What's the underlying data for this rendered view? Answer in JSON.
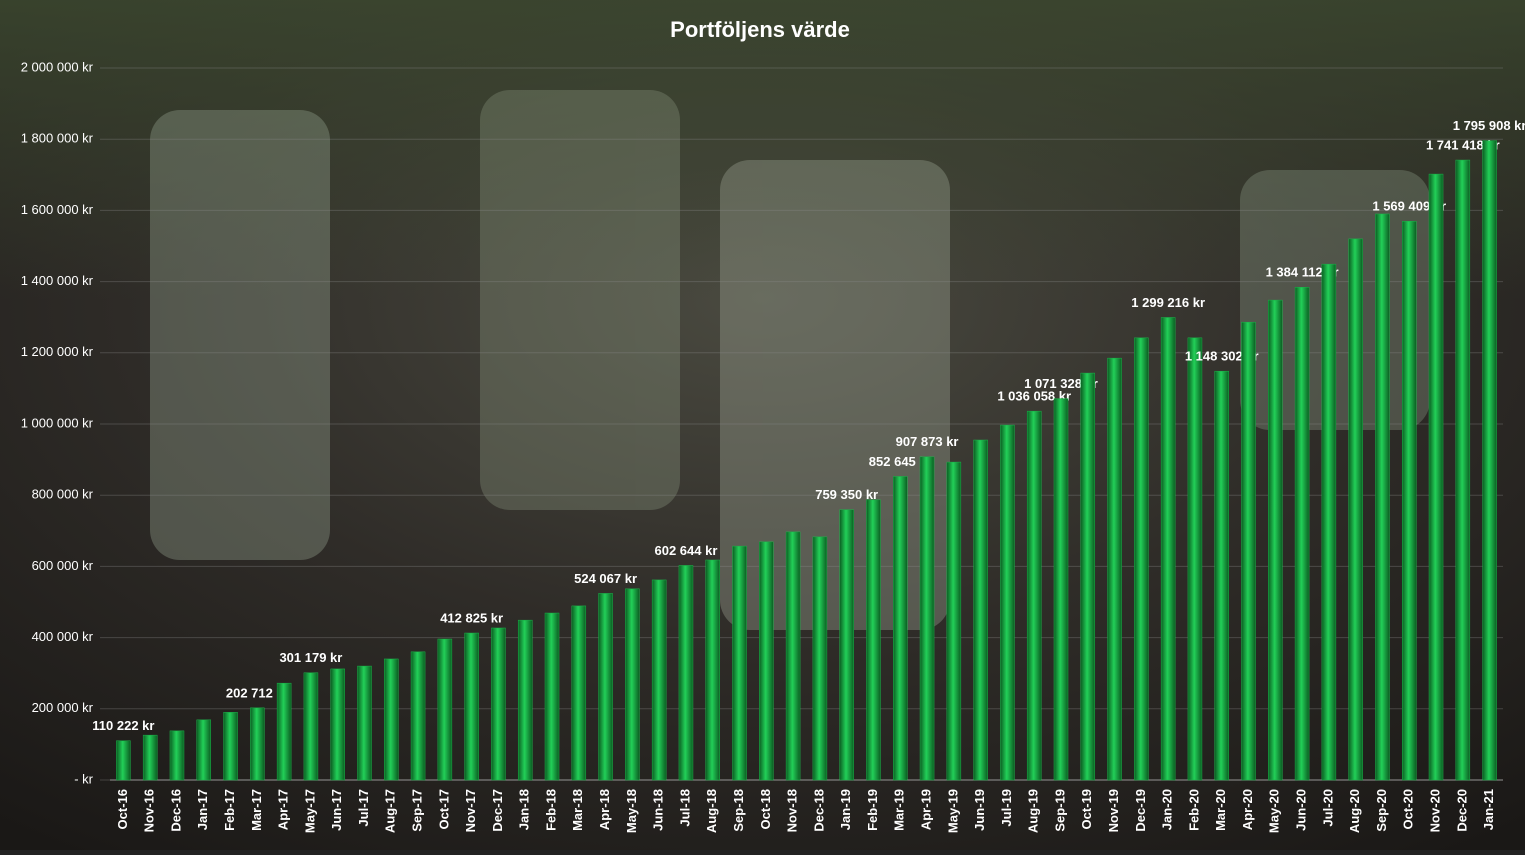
{
  "chart_data": {
    "type": "bar",
    "title": "Portföljens värde",
    "categories": [
      "Oct-16",
      "Nov-16",
      "Dec-16",
      "Jan-17",
      "Feb-17",
      "Mar-17",
      "Apr-17",
      "May-17",
      "Jun-17",
      "Jul-17",
      "Aug-17",
      "Sep-17",
      "Oct-17",
      "Nov-17",
      "Dec-17",
      "Jan-18",
      "Feb-18",
      "Mar-18",
      "Apr-18",
      "May-18",
      "Jun-18",
      "Jul-18",
      "Aug-18",
      "Sep-18",
      "Oct-18",
      "Nov-18",
      "Dec-18",
      "Jan-19",
      "Feb-19",
      "Mar-19",
      "Apr-19",
      "May-19",
      "Jun-19",
      "Jul-19",
      "Aug-19",
      "Sep-19",
      "Oct-19",
      "Nov-19",
      "Dec-19",
      "Jan-20",
      "Feb-20",
      "Mar-20",
      "Apr-20",
      "May-20",
      "Jun-20",
      "Jul-20",
      "Aug-20",
      "Sep-20",
      "Oct-20",
      "Nov-20",
      "Dec-20",
      "Jan-21"
    ],
    "values": [
      110222,
      126000,
      138000,
      169000,
      190000,
      202712,
      272000,
      301179,
      312000,
      320000,
      340000,
      360000,
      396000,
      412825,
      427000,
      449000,
      469000,
      489000,
      524067,
      537000,
      562000,
      602644,
      618000,
      657000,
      669000,
      697000,
      683000,
      759350,
      787000,
      852645,
      907873,
      893000,
      955000,
      997000,
      1036058,
      1071328,
      1143000,
      1185000,
      1242000,
      1299216,
      1242000,
      1148302,
      1286000,
      1348000,
      1384112,
      1449000,
      1520000,
      1590000,
      1569409,
      1702000,
      1741418,
      1795908
    ],
    "value_labels": [
      "110 222 kr",
      null,
      null,
      null,
      null,
      "202 712 kr",
      null,
      "301 179 kr",
      null,
      null,
      null,
      null,
      null,
      "412 825 kr",
      null,
      null,
      null,
      null,
      "524 067 kr",
      null,
      null,
      "602 644 kr",
      null,
      null,
      null,
      null,
      null,
      "759 350 kr",
      null,
      "852 645 kr",
      "907 873 kr",
      null,
      null,
      null,
      "1 036 058 kr",
      "1 071 328 kr",
      null,
      null,
      null,
      "1 299 216 kr",
      null,
      "1 148 302 kr",
      null,
      null,
      "1 384 112 kr",
      null,
      null,
      null,
      "1 569 409 kr",
      null,
      "1 741 418 kr",
      "1 795 908 kr"
    ],
    "color": "#1db34a",
    "ylim": [
      0,
      2000000
    ],
    "yticks": [
      {
        "value": 0,
        "label": "- kr"
      },
      {
        "value": 200000,
        "label": "200 000 kr"
      },
      {
        "value": 400000,
        "label": "400 000 kr"
      },
      {
        "value": 600000,
        "label": "600 000 kr"
      },
      {
        "value": 800000,
        "label": "800 000 kr"
      },
      {
        "value": 1000000,
        "label": "1 000 000 kr"
      },
      {
        "value": 1200000,
        "label": "1 200 000 kr"
      },
      {
        "value": 1400000,
        "label": "1 400 000 kr"
      },
      {
        "value": 1600000,
        "label": "1 600 000 kr"
      },
      {
        "value": 1800000,
        "label": "1 800 000 kr"
      },
      {
        "value": 2000000,
        "label": "2 000 000 kr"
      }
    ],
    "grid": true
  }
}
